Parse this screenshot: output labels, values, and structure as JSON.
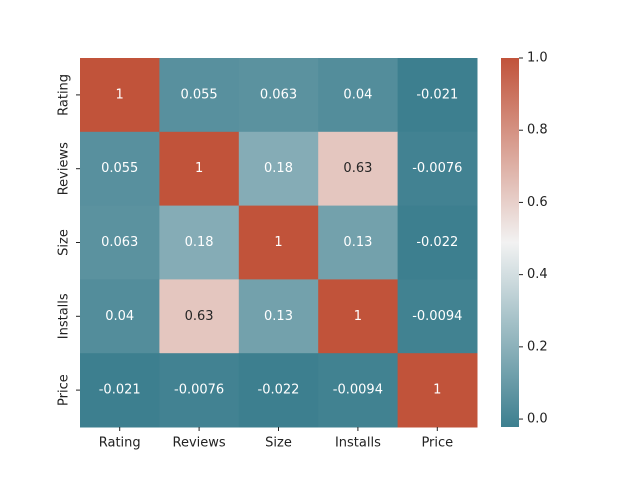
{
  "chart_data": {
    "type": "heatmap",
    "title": "",
    "xlabel": "",
    "ylabel": "",
    "x_categories": [
      "Rating",
      "Reviews",
      "Size",
      "Installs",
      "Price"
    ],
    "y_categories": [
      "Rating",
      "Reviews",
      "Size",
      "Installs",
      "Price"
    ],
    "values": [
      [
        1,
        0.055,
        0.063,
        0.04,
        -0.021
      ],
      [
        0.055,
        1,
        0.18,
        0.63,
        -0.0076
      ],
      [
        0.063,
        0.18,
        1,
        0.13,
        -0.022
      ],
      [
        0.04,
        0.63,
        0.13,
        1,
        -0.0094
      ],
      [
        -0.021,
        -0.0076,
        -0.022,
        -0.0094,
        1
      ]
    ],
    "cell_labels": [
      [
        "1",
        "0.055",
        "0.063",
        "0.04",
        "-0.021"
      ],
      [
        "0.055",
        "1",
        "0.18",
        "0.63",
        "-0.0076"
      ],
      [
        "0.063",
        "0.18",
        "1",
        "0.13",
        "-0.022"
      ],
      [
        "0.04",
        "0.63",
        "0.13",
        "1",
        "-0.0094"
      ],
      [
        "-0.021",
        "-0.0076",
        "-0.022",
        "-0.0094",
        "1"
      ]
    ],
    "colorbar": {
      "range": [
        -0.022,
        1.0
      ],
      "ticks": [
        0.0,
        0.2,
        0.4,
        0.6,
        0.8,
        1.0
      ],
      "tick_labels": [
        "0.0",
        "0.2",
        "0.4",
        "0.6",
        "0.8",
        "1.0"
      ],
      "colormap": "diverging teal-white-red",
      "low_color": "#3d7f8f",
      "mid_color": "#f2f2f2",
      "high_color": "#c1533a"
    },
    "grid": false,
    "legend": "colorbar right"
  }
}
